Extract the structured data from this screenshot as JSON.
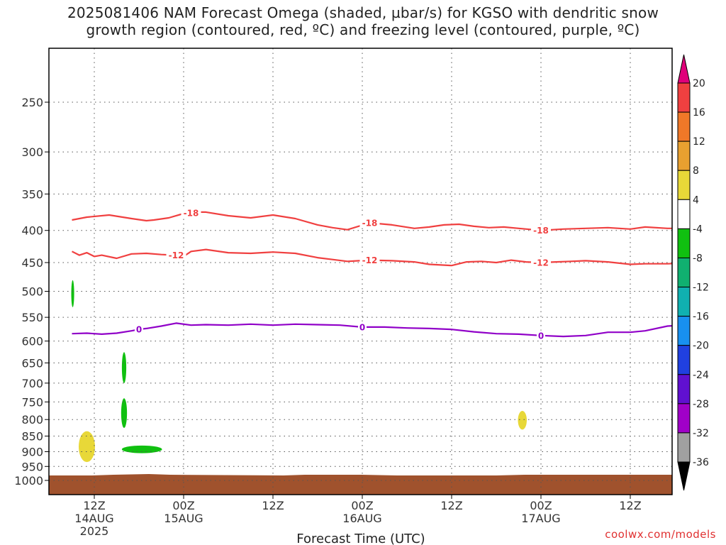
{
  "title_line1": "2025081406 NAM Forecast Omega (shaded, µbar/s) for KGSO with dendritic snow",
  "title_line2": "growth region (contoured, red, ºC) and freezing level (contoured, purple, ºC)",
  "credit": "coolwx.com/models",
  "chart_data": {
    "type": "heatmap",
    "xlabel": "Forecast Time (UTC)",
    "ylabel": "",
    "y_scale": "log-pressure, inverted",
    "ylim": [
      1050,
      200
    ],
    "y_ticks": [
      250,
      300,
      350,
      400,
      450,
      500,
      550,
      600,
      650,
      700,
      750,
      800,
      850,
      900,
      950,
      1000
    ],
    "xlim": [
      3,
      87
    ],
    "x_ticks": [
      {
        "hour": 6,
        "label": "12Z",
        "sub1": "14AUG",
        "sub2": "2025"
      },
      {
        "hour": 18,
        "label": "00Z",
        "sub1": "15AUG",
        "sub2": ""
      },
      {
        "hour": 30,
        "label": "12Z",
        "sub1": "",
        "sub2": ""
      },
      {
        "hour": 42,
        "label": "00Z",
        "sub1": "16AUG",
        "sub2": ""
      },
      {
        "hour": 54,
        "label": "12Z",
        "sub1": "",
        "sub2": ""
      },
      {
        "hour": 66,
        "label": "00Z",
        "sub1": "17AUG",
        "sub2": ""
      },
      {
        "hour": 78,
        "label": "12Z",
        "sub1": "",
        "sub2": ""
      }
    ],
    "grid": true,
    "colorbar": {
      "position": "right",
      "labels": [
        "20",
        "16",
        "12",
        "8",
        "4",
        "-4",
        "-8",
        "-12",
        "-16",
        "-20",
        "-24",
        "-28",
        "-32",
        "-36"
      ],
      "colors": [
        "#e0007a",
        "#f04040",
        "#f07828",
        "#e8a030",
        "#e8d838",
        "#ffffff",
        "#10c010",
        "#10b070",
        "#10b0b0",
        "#1890f0",
        "#2040e0",
        "#6010d0",
        "#a000c8",
        "#a0a0a0",
        "#000000"
      ]
    },
    "series": [
      {
        "name": "-18",
        "color": "#f04040",
        "x": [
          3,
          5,
          8,
          11,
          13,
          14,
          16,
          18,
          20,
          21,
          24,
          27,
          30,
          33,
          36,
          38,
          40,
          43,
          46,
          49,
          51,
          53,
          55,
          57,
          59,
          61,
          63,
          66,
          69,
          72,
          75,
          78,
          80,
          83,
          87
        ],
        "y": [
          385,
          381,
          378,
          383,
          386,
          385,
          382,
          376,
          374,
          374,
          379,
          382,
          378,
          383,
          392,
          396,
          399,
          389,
          392,
          397,
          395,
          392,
          391,
          394,
          396,
          395,
          397,
          400,
          398,
          397,
          396,
          398,
          395,
          397,
          397
        ],
        "labels_at": [
          19,
          43,
          66
        ]
      },
      {
        "name": "-12",
        "color": "#f04040",
        "x": [
          3,
          4,
          5,
          6,
          7,
          9,
          11,
          13,
          15,
          17,
          18,
          19,
          21,
          24,
          27,
          30,
          33,
          36,
          38,
          40,
          43,
          46,
          49,
          51,
          54,
          56,
          58,
          60,
          62,
          64,
          66,
          68,
          70,
          72,
          75,
          78,
          80,
          83,
          87
        ],
        "y": [
          432,
          438,
          434,
          440,
          438,
          443,
          436,
          435,
          437,
          438,
          440,
          432,
          429,
          434,
          435,
          433,
          435,
          442,
          445,
          448,
          446,
          447,
          449,
          453,
          455,
          449,
          448,
          450,
          446,
          449,
          450,
          449,
          448,
          447,
          449,
          453,
          452,
          452,
          450
        ],
        "labels_at": [
          17,
          43,
          66
        ]
      },
      {
        "name": "0",
        "color": "#9000c8",
        "x": [
          3,
          5,
          7,
          9,
          11,
          12,
          13,
          15,
          17,
          19,
          21,
          24,
          27,
          30,
          33,
          36,
          39,
          42,
          45,
          48,
          51,
          54,
          57,
          60,
          63,
          66,
          69,
          72,
          75,
          78,
          80,
          83,
          85,
          87
        ],
        "y": [
          584,
          583,
          585,
          583,
          578,
          575,
          573,
          568,
          562,
          566,
          565,
          566,
          564,
          566,
          564,
          565,
          566,
          570,
          570,
          572,
          573,
          575,
          580,
          584,
          585,
          588,
          590,
          588,
          581,
          581,
          578,
          568,
          566,
          563
        ],
        "labels_at": [
          12,
          42,
          66
        ]
      }
    ],
    "shaded_regions": [
      {
        "value_range": [
          4,
          8
        ],
        "color": "#e8d838",
        "hour_range": [
          4.0,
          6.0
        ],
        "p_range": [
          835,
          935
        ]
      },
      {
        "value_range": [
          -8,
          -4
        ],
        "color": "#10c010",
        "hour_range": [
          9.8,
          10.2
        ],
        "p_range": [
          625,
          700
        ]
      },
      {
        "value_range": [
          -8,
          -4
        ],
        "color": "#10c010",
        "hour_range": [
          9.7,
          10.3
        ],
        "p_range": [
          740,
          825
        ]
      },
      {
        "value_range": [
          -8,
          -4
        ],
        "color": "#10c010",
        "hour_range": [
          9.8,
          15.0
        ],
        "p_range": [
          880,
          905
        ]
      },
      {
        "value_range": [
          4,
          8
        ],
        "color": "#e8d838",
        "hour_range": [
          63.0,
          64.0
        ],
        "p_range": [
          775,
          830
        ]
      },
      {
        "value_range": [
          -8,
          -4
        ],
        "color": "#10c010",
        "hour_range": [
          3.0,
          3.2
        ],
        "p_range": [
          480,
          530
        ]
      }
    ],
    "ground": {
      "color": "#a0522d",
      "p_top": 1000
    }
  }
}
